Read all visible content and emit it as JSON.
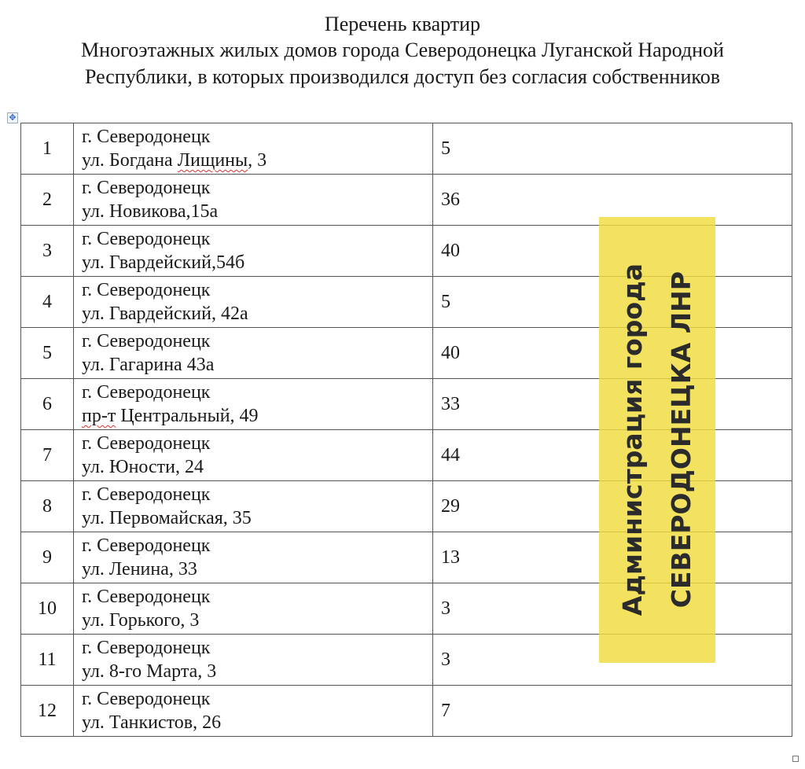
{
  "document": {
    "title_lines": [
      "Перечень квартир",
      "Многоэтажных жилых домов города Северодонецка Луганской Народной",
      "Республики, в которых производился доступ без согласия собственников"
    ],
    "rows": [
      {
        "num": "1",
        "city": "г. Северодонецк",
        "street_prefix": "ул. Богдана ",
        "street_flag": "Лищины",
        "street_suffix": ", 3",
        "count": "5"
      },
      {
        "num": "2",
        "city": "г. Северодонецк",
        "street_prefix": "ул. Новикова,15а",
        "street_flag": "",
        "street_suffix": "",
        "count": "36"
      },
      {
        "num": "3",
        "city": "г. Северодонецк",
        "street_prefix": "ул. Гвардейский,54б",
        "street_flag": "",
        "street_suffix": "",
        "count": "40"
      },
      {
        "num": "4",
        "city": "г. Северодонецк",
        "street_prefix": "ул. Гвардейский, 42а",
        "street_flag": "",
        "street_suffix": "",
        "count": "5"
      },
      {
        "num": "5",
        "city": "г. Северодонецк",
        "street_prefix": "ул. Гагарина 43а",
        "street_flag": "",
        "street_suffix": "",
        "count": "40"
      },
      {
        "num": "6",
        "city": "г. Северодонецк",
        "street_prefix": "",
        "street_flag": "пр-т",
        "street_suffix": " Центральный, 49",
        "count": "33"
      },
      {
        "num": "7",
        "city": "г. Северодонецк",
        "street_prefix": "ул. Юности, 24",
        "street_flag": "",
        "street_suffix": "",
        "count": "44"
      },
      {
        "num": "8",
        "city": "г. Северодонецк",
        "street_prefix": "ул. Первомайская, 35",
        "street_flag": "",
        "street_suffix": "",
        "count": "29"
      },
      {
        "num": "9",
        "city": "г. Северодонецк",
        "street_prefix": "ул. Ленина, 33",
        "street_flag": "",
        "street_suffix": "",
        "count": "13"
      },
      {
        "num": "10",
        "city": "г. Северодонецк",
        "street_prefix": "ул. Горького, 3",
        "street_flag": "",
        "street_suffix": "",
        "count": "3"
      },
      {
        "num": "11",
        "city": "г. Северодонецк",
        "street_prefix": "ул. 8-го Марта, 3",
        "street_flag": "",
        "street_suffix": "",
        "count": "3"
      },
      {
        "num": "12",
        "city": "г. Северодонецк",
        "street_prefix": "ул. Танкистов, 26",
        "street_flag": "",
        "street_suffix": "",
        "count": "7"
      }
    ]
  },
  "stamp": {
    "line1": "Администрация города",
    "line2": "СЕВЕРОДОНЕЦКА ЛНР",
    "color": "#f0dc3c"
  },
  "icons": {
    "table_move": "move-icon",
    "table_resize": "resize-handle"
  }
}
